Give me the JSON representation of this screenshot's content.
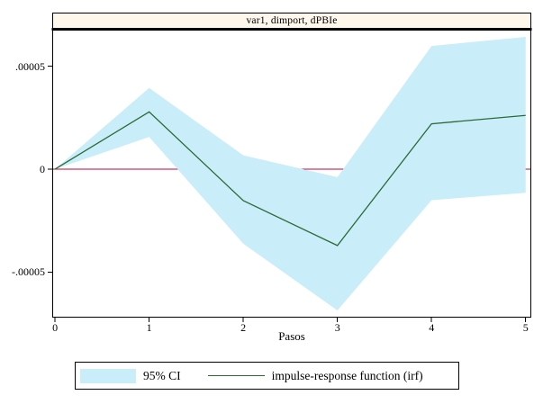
{
  "chart_data": {
    "type": "line",
    "title": "var1, dimport, dPBIe",
    "xlabel": "Pasos",
    "ylabel": "",
    "x": [
      0,
      1,
      2,
      3,
      4,
      5
    ],
    "series": [
      {
        "name": "95% CI upper",
        "role": "ci-upper",
        "values": [
          0,
          3.94e-05,
          6.7e-06,
          -3.9e-06,
          5.98e-05,
          6.42e-05
        ]
      },
      {
        "name": "95% CI lower",
        "role": "ci-lower",
        "values": [
          0,
          1.56e-05,
          -3.62e-05,
          -6.86e-05,
          -1.51e-05,
          -1.15e-05
        ]
      },
      {
        "name": "impulse-response function (irf)",
        "role": "irf-line",
        "values": [
          0,
          2.78e-05,
          -1.53e-05,
          -3.71e-05,
          2.2e-05,
          2.61e-05
        ]
      }
    ],
    "refline_y": 0,
    "xlim": [
      -0.03,
      5.06
    ],
    "ylim": [
      -7.21e-05,
      6.77e-05
    ],
    "grid": false,
    "legend_position": "bottom-center",
    "yticks": [
      {
        "value": 5e-05,
        "label": ".00005"
      },
      {
        "value": 0,
        "label": "0"
      },
      {
        "value": -5e-05,
        "label": "-.00005"
      }
    ],
    "xticks": [
      {
        "value": 0,
        "label": "0"
      },
      {
        "value": 1,
        "label": "1"
      },
      {
        "value": 2,
        "label": "2"
      },
      {
        "value": 3,
        "label": "3"
      },
      {
        "value": 4,
        "label": "4"
      },
      {
        "value": 5,
        "label": "5"
      }
    ],
    "legend": {
      "ci_label": "95% CI",
      "irf_label": "impulse-response function (irf)"
    },
    "colors": {
      "band": "#c9edf9",
      "irf_line": "#2a6b35",
      "refline": "#c10534",
      "frame": "#000000",
      "title_bg": "#fdf7ec",
      "background": "#ffffff"
    }
  }
}
